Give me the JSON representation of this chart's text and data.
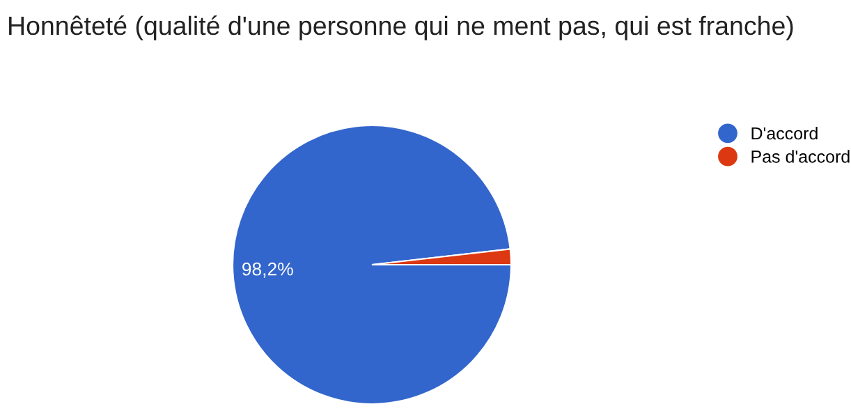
{
  "chart_data": {
    "type": "pie",
    "title": "Honnêteté (qualité d'une personne qui ne ment pas, qui est franche)",
    "categories": [
      "D'accord",
      "Pas d'accord"
    ],
    "values": [
      98.2,
      1.8
    ],
    "colors": [
      "#3366cc",
      "#dc3912"
    ],
    "value_labels": [
      "98,2%",
      null
    ],
    "legend": "top right"
  }
}
